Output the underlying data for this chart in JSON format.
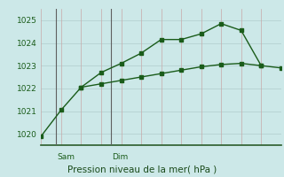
{
  "line1_x": [
    0,
    1,
    2,
    3,
    4,
    5,
    6,
    7,
    8,
    9,
    10,
    11
  ],
  "line1_y": [
    1019.9,
    1021.05,
    1022.05,
    1022.7,
    1023.1,
    1023.55,
    1024.15,
    1024.15,
    1024.4,
    1024.85,
    1024.55,
    1023.0
  ],
  "line2_x": [
    2,
    3,
    4,
    5,
    6,
    7,
    8,
    9,
    10,
    11,
    12
  ],
  "line2_y": [
    1022.05,
    1022.2,
    1022.35,
    1022.5,
    1022.65,
    1022.8,
    1022.95,
    1023.05,
    1023.1,
    1023.0,
    1022.9
  ],
  "sam_x": 0.75,
  "dim_x": 3.5,
  "ylim": [
    1019.5,
    1025.5
  ],
  "yticks": [
    1020,
    1021,
    1022,
    1023,
    1024,
    1025
  ],
  "xlim": [
    0,
    12
  ],
  "line_color": "#1a5c1a",
  "bg_color": "#cce8e8",
  "grid_color_h": "#b8d4d4",
  "grid_color_v": "#c8a8a8",
  "xlabel": "Pression niveau de la mer( hPa )",
  "xlabel_color": "#1a4a1a",
  "tick_label_color": "#1a5c1a",
  "day_label_color": "#1a5c1a",
  "vline_color": "#606060",
  "bottom_line_color": "#2a5c2a"
}
